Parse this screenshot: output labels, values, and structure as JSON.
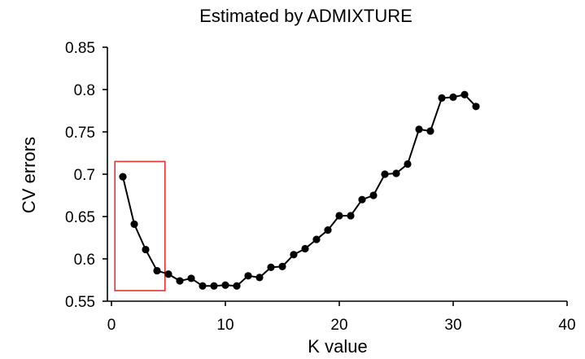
{
  "chart_data": {
    "type": "line",
    "title": "Estimated by ADMIXTURE",
    "xlabel": "K value",
    "ylabel": "CV errors",
    "xlim": [
      0,
      40
    ],
    "ylim": [
      0.55,
      0.85
    ],
    "xticks": [
      0,
      10,
      20,
      30,
      40
    ],
    "yticks": [
      0.55,
      0.6,
      0.65,
      0.7,
      0.75,
      0.8,
      0.85
    ],
    "xtick_labels": [
      "0",
      "10",
      "20",
      "30",
      "40"
    ],
    "ytick_labels": [
      "0.55",
      "0.6",
      "0.65",
      "0.7",
      "0.75",
      "0.8",
      "0.85"
    ],
    "grid": false,
    "series": [
      {
        "x": [
          1,
          2,
          3,
          4,
          5,
          6,
          7,
          8,
          9,
          10,
          11,
          12,
          13,
          14,
          15,
          16,
          17,
          18,
          19,
          20,
          21,
          22,
          23,
          24,
          25,
          26,
          27,
          28,
          29,
          30,
          31,
          32
        ],
        "values": [
          0.697,
          0.641,
          0.611,
          0.586,
          0.582,
          0.574,
          0.577,
          0.568,
          0.568,
          0.569,
          0.568,
          0.58,
          0.578,
          0.59,
          0.591,
          0.605,
          0.612,
          0.623,
          0.634,
          0.651,
          0.651,
          0.67,
          0.675,
          0.7,
          0.701,
          0.712,
          0.753,
          0.751,
          0.79,
          0.791,
          0.794,
          0.78
        ]
      }
    ],
    "annotations": [
      {
        "type": "rectangle",
        "color": "#e8312f",
        "x_range": [
          0.3,
          4.7
        ],
        "y_range": [
          0.5625,
          0.715
        ]
      }
    ],
    "colors": {
      "series": "#000000",
      "axes": "#000000"
    }
  }
}
